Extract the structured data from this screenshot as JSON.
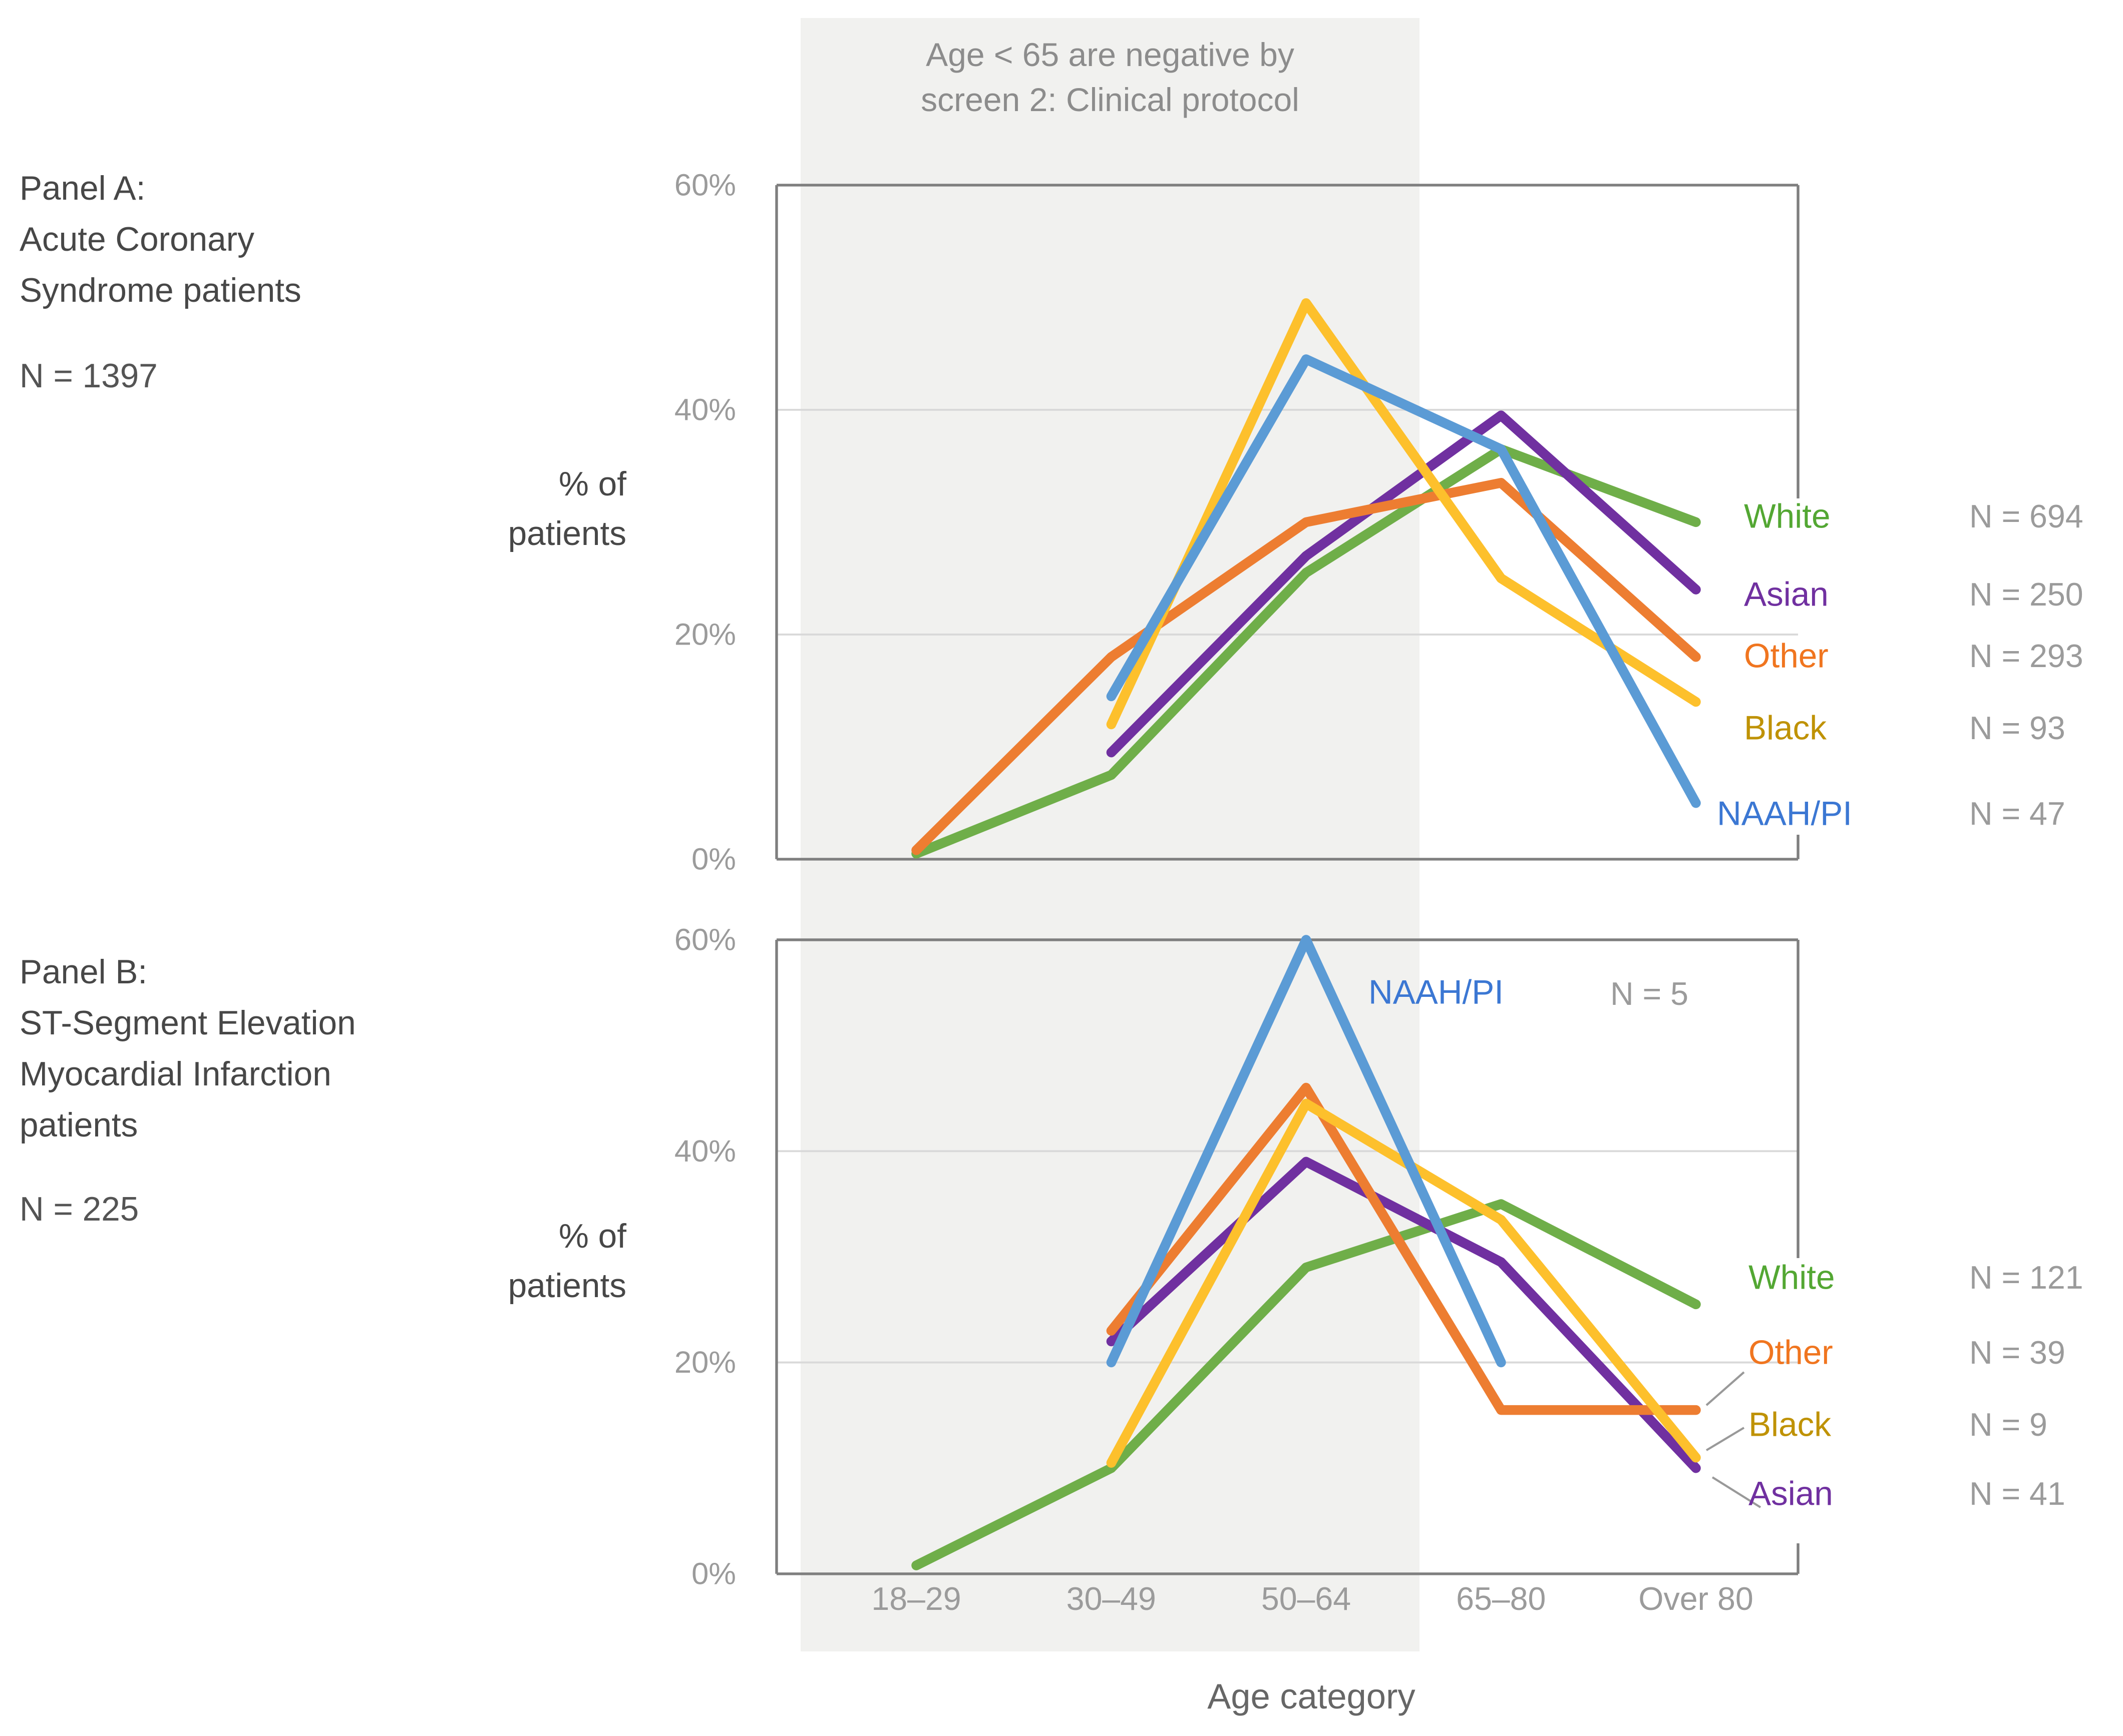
{
  "figure": {
    "annotation": {
      "line1": "Age < 65 are negative by",
      "line2": "screen 2: Clinical protocol"
    },
    "xlabel": "Age category",
    "ylabel": {
      "line1": "% of",
      "line2": "patients"
    }
  },
  "chart_data": [
    {
      "type": "line",
      "panel": "A",
      "title_lines": [
        "Panel A:",
        "Acute Coronary",
        "Syndrome patients"
      ],
      "n_total": "N = 1397",
      "x_categories": [
        "18–29",
        "30–49",
        "50–64",
        "65–80",
        "Over 80"
      ],
      "yticks": [
        "0%",
        "20%",
        "40%",
        "60%"
      ],
      "ylim": [
        0,
        60
      ],
      "ylabel": "% of patients",
      "grid": true,
      "legend_position": "right",
      "highlight_note": "Age < 65 are negative by screen 2: Clinical protocol",
      "series": [
        {
          "name": "White",
          "n_label": "N = 694",
          "color": "#6fae49",
          "label_color": "#53a733",
          "values": [
            0.5,
            7.5,
            25.5,
            36.5,
            30
          ]
        },
        {
          "name": "Asian",
          "n_label": "N = 250",
          "color": "#7030a0",
          "label_color": "#7030a0",
          "values": [
            null,
            9.5,
            27,
            39.5,
            24
          ]
        },
        {
          "name": "Other",
          "n_label": "N = 293",
          "color": "#ed7d31",
          "label_color": "#f0751f",
          "values": [
            0.8,
            18,
            30,
            33.5,
            18
          ]
        },
        {
          "name": "Black",
          "n_label": "N = 93",
          "color": "#fdc02c",
          "label_color": "#bf9204",
          "values": [
            null,
            12,
            49.5,
            25,
            14
          ]
        },
        {
          "name": "NAAH/PI",
          "n_label": "N = 47",
          "color": "#5b9bd5",
          "label_color": "#3b77d3",
          "values": [
            null,
            14.5,
            44.5,
            36.5,
            5
          ]
        }
      ]
    },
    {
      "type": "line",
      "panel": "B",
      "title_lines": [
        "Panel B:",
        "ST-Segment Elevation",
        "Myocardial Infarction",
        "patients"
      ],
      "n_total": "N = 225",
      "x_categories": [
        "18–29",
        "30–49",
        "50–64",
        "65–80",
        "Over 80"
      ],
      "yticks": [
        "0%",
        "20%",
        "40%",
        "60%"
      ],
      "ylim": [
        0,
        60
      ],
      "ylabel": "% of patients",
      "grid": true,
      "legend_position": "right",
      "inline_label": {
        "text": "NAAH/PI",
        "n": "N = 5"
      },
      "series": [
        {
          "name": "White",
          "n_label": "N = 121",
          "color": "#6fae49",
          "label_color": "#53a733",
          "values": [
            0.8,
            10,
            29,
            35,
            25.5
          ]
        },
        {
          "name": "Asian",
          "n_label": "N = 41",
          "color": "#7030a0",
          "label_color": "#7030a0",
          "values": [
            null,
            22,
            39,
            29.5,
            10
          ]
        },
        {
          "name": "Other",
          "n_label": "N = 39",
          "color": "#ed7d31",
          "label_color": "#f0751f",
          "values": [
            null,
            23,
            46,
            15.5,
            15.5
          ]
        },
        {
          "name": "Black",
          "n_label": "N = 9",
          "color": "#fdc02c",
          "label_color": "#bf9204",
          "values": [
            null,
            10.5,
            44.5,
            33.5,
            11
          ]
        },
        {
          "name": "NAAH/PI",
          "n_label": "N = 5",
          "color": "#5b9bd5",
          "label_color": "#3b77d3",
          "values": [
            null,
            20,
            60,
            20,
            null
          ]
        }
      ]
    }
  ]
}
